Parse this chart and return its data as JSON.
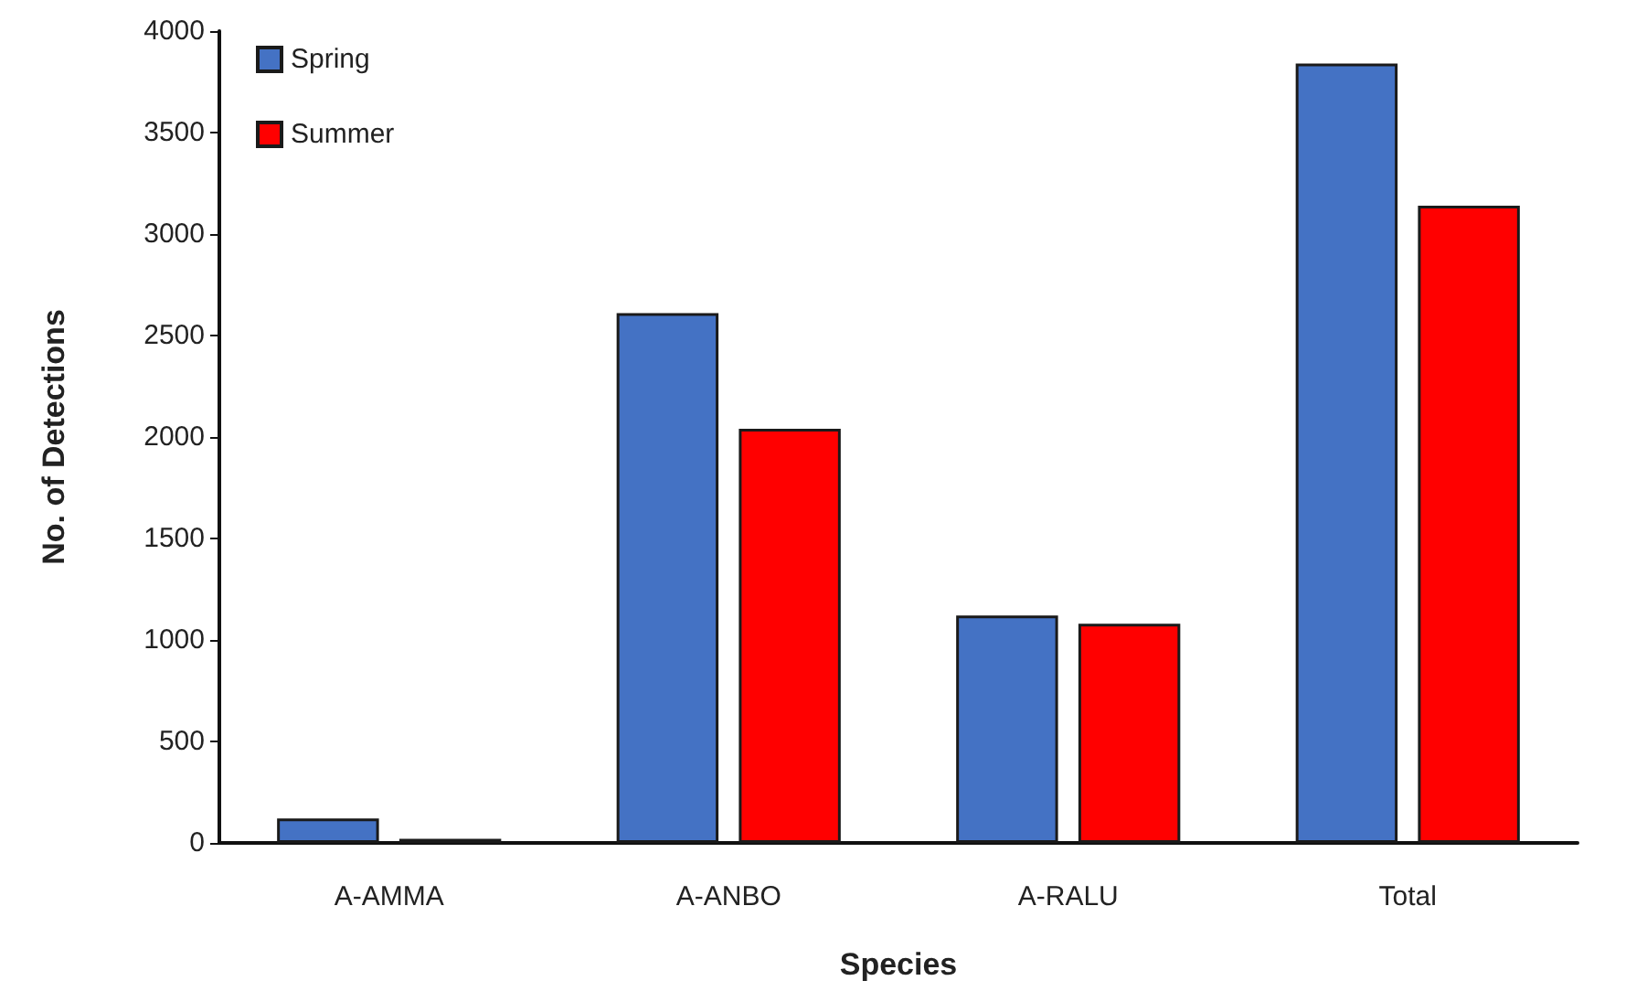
{
  "chart_data": {
    "type": "bar",
    "xlabel": "Species",
    "ylabel": "No. of Detections",
    "categories": [
      "A-AMMA",
      "A-ANBO",
      "A-RALU",
      "Total"
    ],
    "series": [
      {
        "name": "Spring",
        "color": "#4472c4",
        "values": [
          120,
          2610,
          1120,
          3840
        ]
      },
      {
        "name": "Summer",
        "color": "#ff0000",
        "values": [
          20,
          2040,
          1080,
          3140
        ]
      }
    ],
    "ylim": [
      0,
      4000
    ],
    "yticks": [
      0,
      500,
      1000,
      1500,
      2000,
      2500,
      3000,
      3500,
      4000
    ],
    "grid": false,
    "legend": "top left"
  }
}
